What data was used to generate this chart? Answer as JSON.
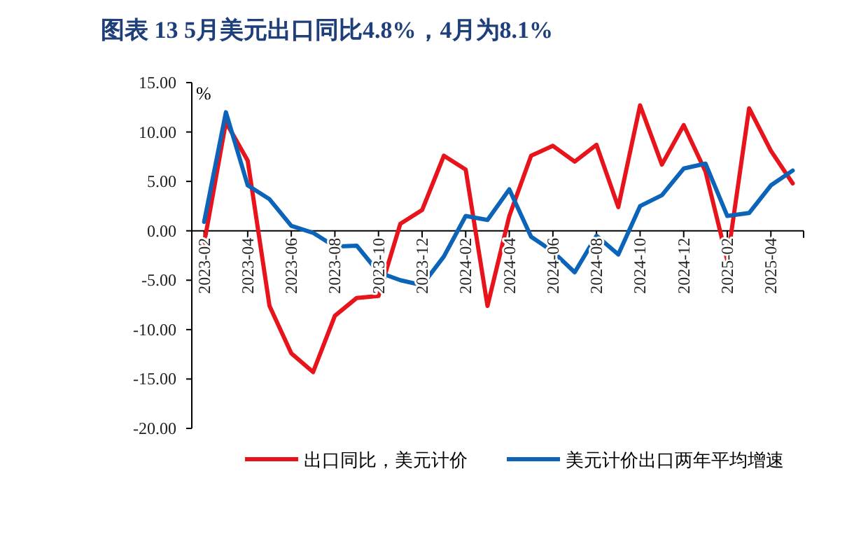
{
  "chart_data": {
    "type": "line",
    "title": "图表 13   5月美元出口同比4.8%，4月为8.1%",
    "ylabel": "%",
    "categories": [
      "2023-02",
      null,
      "2023-04",
      null,
      "2023-06",
      null,
      "2023-08",
      null,
      "2023-10",
      null,
      "2023-12",
      null,
      "2024-02",
      null,
      "2024-04",
      null,
      "2024-06",
      null,
      "2024-08",
      null,
      "2024-10",
      null,
      "2024-12",
      null,
      "2025-02",
      null,
      "2025-04",
      null
    ],
    "series": [
      {
        "name": "出口同比，美元计价",
        "color": "#e8141c",
        "values": [
          -1.3,
          11.0,
          7.1,
          -7.6,
          -12.4,
          -14.3,
          -8.6,
          -6.8,
          -6.6,
          0.7,
          2.1,
          7.6,
          6.2,
          -7.6,
          1.5,
          7.6,
          8.6,
          7.0,
          8.7,
          2.4,
          12.7,
          6.7,
          10.7,
          6.0,
          -3.0,
          12.4,
          8.1,
          4.8
        ]
      },
      {
        "name": "美元计价出口两年平均增速",
        "color": "#0c64b8",
        "values": [
          0.9,
          12.0,
          4.6,
          3.2,
          0.5,
          -0.2,
          -1.6,
          -1.5,
          -4.2,
          -5.0,
          -5.5,
          -2.6,
          1.5,
          1.1,
          4.2,
          -0.6,
          -2.1,
          -4.2,
          -0.5,
          -2.4,
          2.5,
          3.6,
          6.3,
          6.8,
          1.5,
          1.8,
          4.6,
          6.1
        ]
      }
    ],
    "ylim": [
      -20,
      15
    ],
    "yticks": [
      {
        "value": -20,
        "label": "-20.00"
      },
      {
        "value": -15,
        "label": "-15.00"
      },
      {
        "value": -10,
        "label": "-10.00"
      },
      {
        "value": -5,
        "label": "-5.00"
      },
      {
        "value": 0,
        "label": "0.00"
      },
      {
        "value": 5,
        "label": "5.00"
      },
      {
        "value": 10,
        "label": "10.00"
      },
      {
        "value": 15,
        "label": "15.00"
      }
    ],
    "legend": "bottom",
    "marker": "none",
    "line_style": "solid",
    "grid": false
  }
}
